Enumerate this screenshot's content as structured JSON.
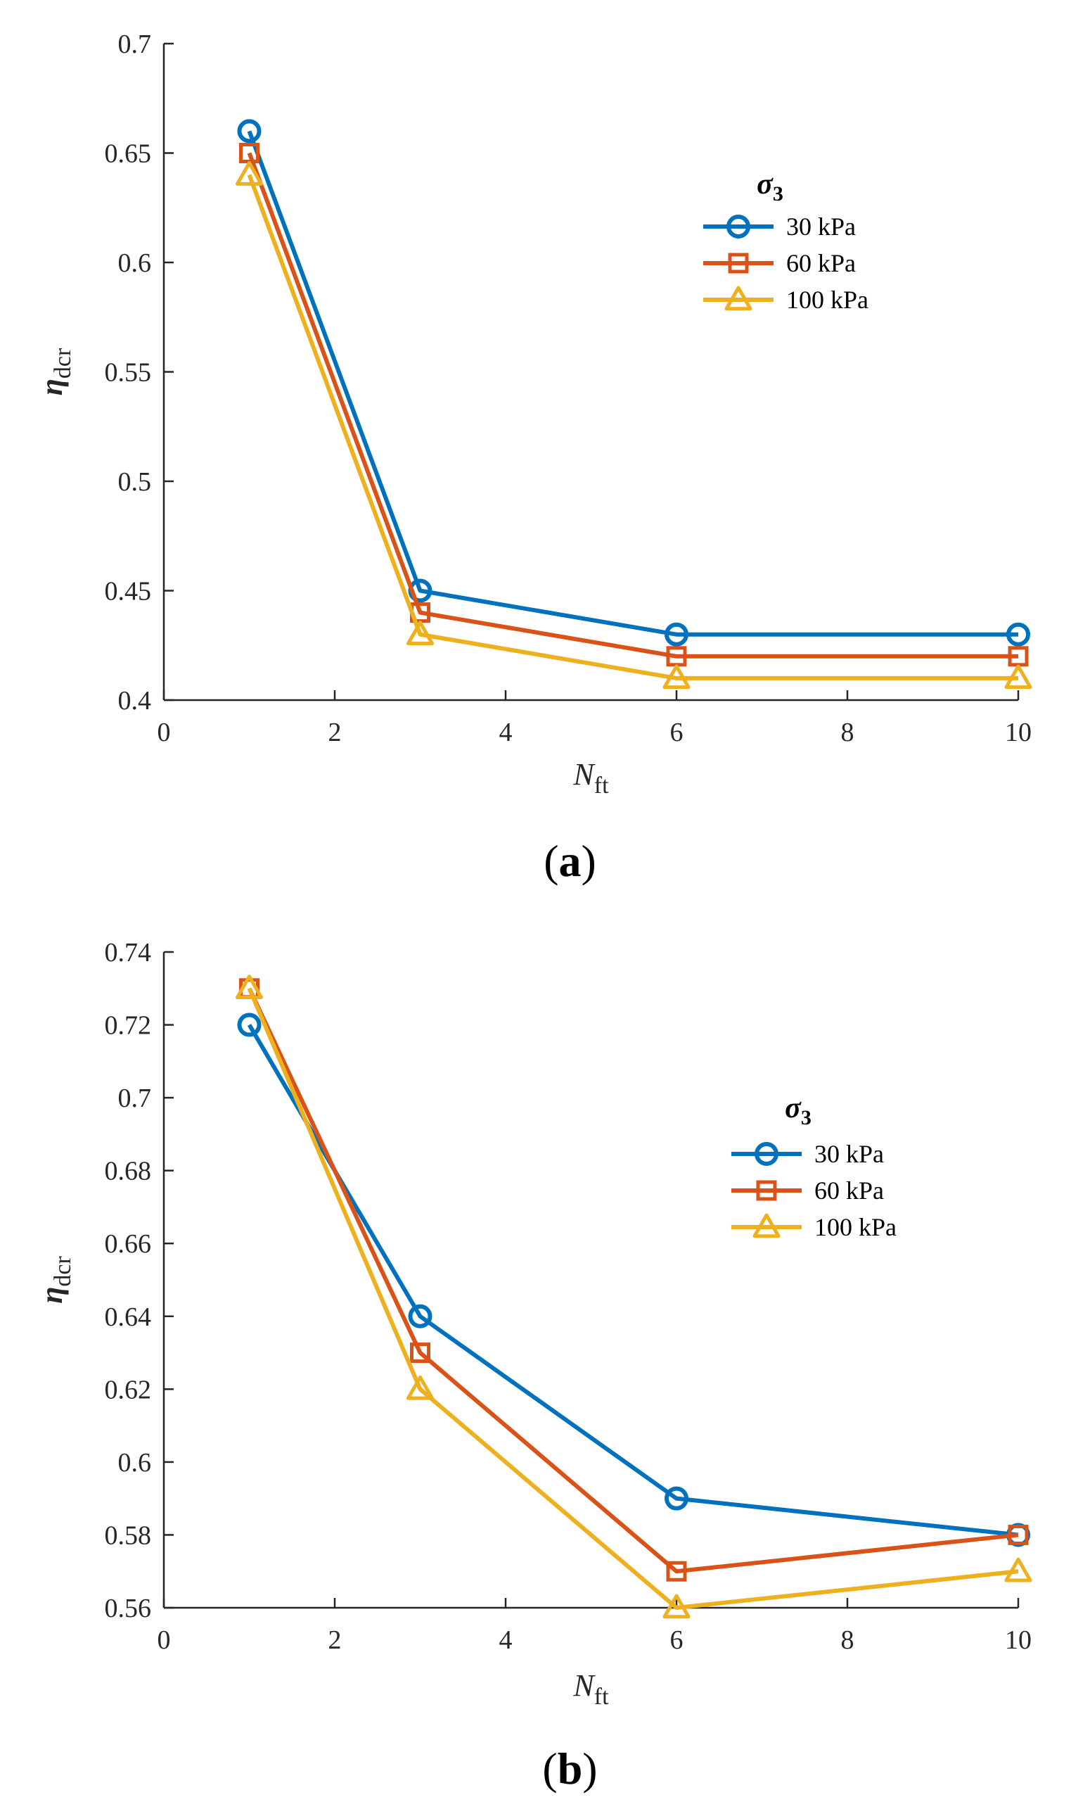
{
  "chart_data": [
    {
      "type": "line",
      "panel_label_open": "(",
      "panel_label_letter": "a",
      "panel_label_close": ")",
      "xlabel": "N",
      "xlabel_sub": "ft",
      "ylabel": "η",
      "ylabel_sub": "dcr",
      "xlim": [
        0,
        10
      ],
      "ylim": [
        0.4,
        0.7
      ],
      "xticks": [
        0,
        2,
        4,
        6,
        8,
        10
      ],
      "xtick_labels": [
        "0",
        "2",
        "4",
        "6",
        "8",
        "10"
      ],
      "yticks": [
        0.4,
        0.45,
        0.5,
        0.55,
        0.6,
        0.65,
        0.7
      ],
      "ytick_labels": [
        "0.4",
        "0.45",
        "0.5",
        "0.55",
        "0.6",
        "0.65",
        "0.7"
      ],
      "x": [
        1,
        3,
        6,
        10
      ],
      "legend_title": "σ",
      "legend_title_sub": "3",
      "legend_position": "top-right",
      "series": [
        {
          "name": "30 kPa",
          "color": "#0072BD",
          "marker": "circle",
          "values": [
            0.66,
            0.45,
            0.43,
            0.43
          ]
        },
        {
          "name": "60 kPa",
          "color": "#D95319",
          "marker": "square",
          "values": [
            0.65,
            0.44,
            0.42,
            0.42
          ]
        },
        {
          "name": "100 kPa",
          "color": "#EDB120",
          "marker": "triangle",
          "values": [
            0.64,
            0.43,
            0.41,
            0.41
          ]
        }
      ]
    },
    {
      "type": "line",
      "panel_label_open": "(",
      "panel_label_letter": "b",
      "panel_label_close": ")",
      "xlabel": "N",
      "xlabel_sub": "ft",
      "ylabel": "η",
      "ylabel_sub": "dcr",
      "xlim": [
        0,
        10
      ],
      "ylim": [
        0.56,
        0.74
      ],
      "xticks": [
        0,
        2,
        4,
        6,
        8,
        10
      ],
      "xtick_labels": [
        "0",
        "2",
        "4",
        "6",
        "8",
        "10"
      ],
      "yticks": [
        0.56,
        0.58,
        0.6,
        0.62,
        0.64,
        0.66,
        0.68,
        0.7,
        0.72,
        0.74
      ],
      "ytick_labels": [
        "0.56",
        "0.58",
        "0.6",
        "0.62",
        "0.64",
        "0.66",
        "0.68",
        "0.7",
        "0.72",
        "0.74"
      ],
      "x": [
        1,
        3,
        6,
        10
      ],
      "legend_title": "σ",
      "legend_title_sub": "3",
      "legend_position": "right",
      "series": [
        {
          "name": "30 kPa",
          "color": "#0072BD",
          "marker": "circle",
          "values": [
            0.72,
            0.64,
            0.59,
            0.58
          ]
        },
        {
          "name": "60 kPa",
          "color": "#D95319",
          "marker": "square",
          "values": [
            0.73,
            0.63,
            0.57,
            0.58
          ]
        },
        {
          "name": "100 kPa",
          "color": "#EDB120",
          "marker": "triangle",
          "values": [
            0.73,
            0.62,
            0.56,
            0.57
          ]
        }
      ]
    }
  ]
}
